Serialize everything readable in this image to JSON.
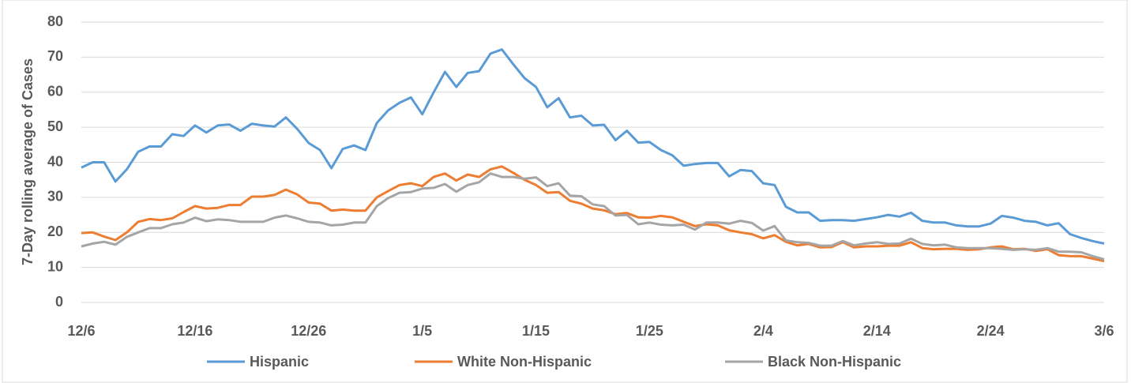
{
  "chart_data": {
    "type": "line",
    "y_label": "7-Day rolling average of Cases",
    "categories": [
      "12/6",
      null,
      null,
      null,
      null,
      null,
      null,
      null,
      null,
      null,
      "12/16",
      null,
      null,
      null,
      null,
      null,
      null,
      null,
      null,
      null,
      "12/26",
      null,
      null,
      null,
      null,
      null,
      null,
      null,
      null,
      null,
      "1/5",
      null,
      null,
      null,
      null,
      null,
      null,
      null,
      null,
      null,
      "1/15",
      null,
      null,
      null,
      null,
      null,
      null,
      null,
      null,
      null,
      "1/25",
      null,
      null,
      null,
      null,
      null,
      null,
      null,
      null,
      null,
      "2/4",
      null,
      null,
      null,
      null,
      null,
      null,
      null,
      null,
      null,
      "2/14",
      null,
      null,
      null,
      null,
      null,
      null,
      null,
      null,
      null,
      "2/24",
      null,
      null,
      null,
      null,
      null,
      null,
      null,
      null,
      null,
      "3/6"
    ],
    "series": [
      {
        "name": "Hispanic",
        "color": "#5b9bd5",
        "values": [
          38.5,
          40,
          40,
          34.5,
          38,
          43,
          44.5,
          44.5,
          48,
          47.5,
          50.5,
          48.5,
          50.5,
          50.8,
          49,
          51,
          50.5,
          50.2,
          52.8,
          49.5,
          45.5,
          43.5,
          38.3,
          43.8,
          44.8,
          43.5,
          51.2,
          54.8,
          57,
          58.5,
          53.7,
          60,
          65.8,
          61.5,
          65.5,
          66,
          71,
          72.2,
          68,
          64,
          61.5,
          55.7,
          58.3,
          52.8,
          53.3,
          50.5,
          50.7,
          46.3,
          49,
          45.6,
          45.8,
          43.5,
          42,
          39,
          39.5,
          39.8,
          39.8,
          36,
          37.8,
          37.5,
          34,
          33.5,
          27.3,
          25.7,
          25.7,
          23.3,
          23.5,
          23.5,
          23.3,
          23.8,
          24.3,
          25,
          24.5,
          25.6,
          23.3,
          22.8,
          22.8,
          22,
          21.7,
          21.7,
          22.5,
          24.7,
          24.2,
          23.3,
          23,
          22,
          22.6,
          19.5,
          18.4,
          17.5,
          16.8
        ]
      },
      {
        "name": "White Non-Hispanic",
        "color": "#ed7d31",
        "values": [
          19.8,
          20,
          18.8,
          17.8,
          20,
          23,
          23.8,
          23.5,
          24,
          25.8,
          27.5,
          26.8,
          27,
          27.8,
          27.8,
          30.2,
          30.2,
          30.7,
          32.2,
          30.8,
          28.5,
          28.2,
          26.2,
          26.5,
          26.2,
          26.2,
          30,
          31.8,
          33.5,
          34,
          33.2,
          35.8,
          36.8,
          34.8,
          36.5,
          35.8,
          38,
          38.8,
          37,
          35,
          33.5,
          31.3,
          31.5,
          29,
          28.2,
          26.8,
          26.3,
          25.2,
          25.5,
          24.3,
          24.2,
          24.7,
          24.3,
          23,
          21.8,
          22.3,
          22,
          20.6,
          20,
          19.5,
          18.3,
          19.2,
          17.3,
          16.3,
          16.7,
          15.7,
          15.8,
          17.2,
          15.7,
          16,
          16,
          16.2,
          16.2,
          17.2,
          15.5,
          15.2,
          15.3,
          15.3,
          15,
          15.2,
          15.7,
          16,
          15.2,
          15.3,
          14.7,
          15.2,
          13.5,
          13.2,
          13.2,
          12.5,
          11.8
        ]
      },
      {
        "name": "Black Non-Hispanic",
        "color": "#a5a5a5",
        "values": [
          16,
          16.8,
          17.3,
          16.5,
          18.7,
          20,
          21.2,
          21.2,
          22.3,
          22.8,
          24.2,
          23.2,
          23.7,
          23.5,
          23,
          23,
          23,
          24.2,
          24.8,
          24,
          23,
          22.8,
          22,
          22.2,
          22.8,
          22.8,
          27.5,
          29.8,
          31.3,
          31.5,
          32.5,
          32.7,
          33.8,
          31.6,
          33.5,
          34.3,
          36.8,
          35.8,
          35.8,
          35.3,
          35.7,
          33.2,
          34,
          30.5,
          30.3,
          28,
          27.5,
          24.8,
          25,
          22.3,
          22.8,
          22.2,
          22,
          22.2,
          20.8,
          22.8,
          22.8,
          22.5,
          23.3,
          22.7,
          20.5,
          21.8,
          17.7,
          17.2,
          17,
          16.2,
          16.2,
          17.5,
          16.3,
          16.8,
          17.2,
          16.7,
          16.8,
          18.2,
          16.7,
          16.3,
          16.5,
          15.7,
          15.5,
          15.5,
          15.5,
          15.3,
          15,
          15.2,
          15,
          15.5,
          14.5,
          14.5,
          14.3,
          13.2,
          12.3
        ]
      }
    ],
    "ylim": [
      0,
      80
    ],
    "yticks": [
      0,
      10,
      20,
      30,
      40,
      50,
      60,
      70,
      80
    ],
    "grid": true,
    "legend": "bottom"
  }
}
